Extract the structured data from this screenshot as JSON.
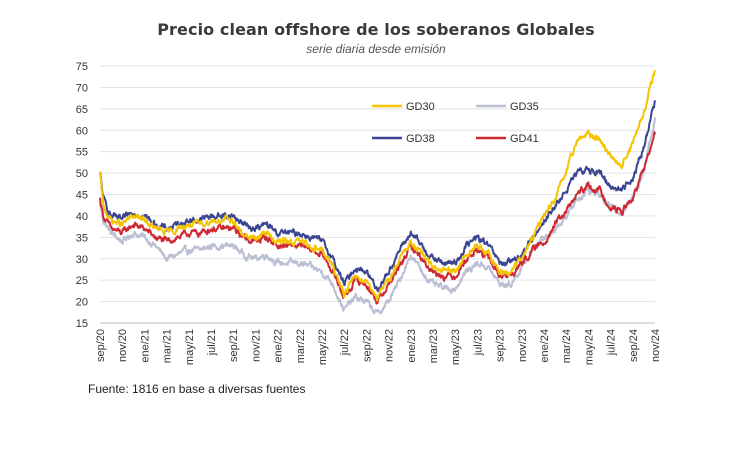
{
  "chart_data": {
    "type": "line",
    "title": "Precio clean offshore de los soberanos Globales",
    "subtitle": "serie diaria desde emisión",
    "source": "Fuente: 1816 en base a diversas fuentes",
    "ylim": [
      15,
      75
    ],
    "yticks": [
      15,
      20,
      25,
      30,
      35,
      40,
      45,
      50,
      55,
      60,
      65,
      70,
      75
    ],
    "grid": true,
    "legend_position": "top-center",
    "x_time_range": [
      "2020-09",
      "2024-11"
    ],
    "xticks": [
      {
        "label": "sep/20",
        "t": 0
      },
      {
        "label": "nov/20",
        "t": 2
      },
      {
        "label": "ene/21",
        "t": 4
      },
      {
        "label": "mar/21",
        "t": 6
      },
      {
        "label": "may/21",
        "t": 8
      },
      {
        "label": "jul/21",
        "t": 10
      },
      {
        "label": "sep/21",
        "t": 12
      },
      {
        "label": "nov/21",
        "t": 14
      },
      {
        "label": "ene/22",
        "t": 16
      },
      {
        "label": "mar/22",
        "t": 18
      },
      {
        "label": "may/22",
        "t": 20
      },
      {
        "label": "jul/22",
        "t": 22
      },
      {
        "label": "sep/22",
        "t": 24
      },
      {
        "label": "nov/22",
        "t": 26
      },
      {
        "label": "ene/23",
        "t": 28
      },
      {
        "label": "mar/23",
        "t": 30
      },
      {
        "label": "may/23",
        "t": 32
      },
      {
        "label": "jul/23",
        "t": 34
      },
      {
        "label": "sep/23",
        "t": 36
      },
      {
        "label": "nov/23",
        "t": 38
      },
      {
        "label": "ene/24",
        "t": 40
      },
      {
        "label": "mar/24",
        "t": 42
      },
      {
        "label": "may/24",
        "t": 44
      },
      {
        "label": "jul/24",
        "t": 46
      },
      {
        "label": "sep/24",
        "t": 48
      },
      {
        "label": "nov/24",
        "t": 50
      }
    ],
    "series": [
      {
        "name": "GD30",
        "color": "#f5c400",
        "points": [
          [
            0,
            50
          ],
          [
            0.3,
            42
          ],
          [
            1,
            39
          ],
          [
            2,
            38
          ],
          [
            3,
            40
          ],
          [
            4,
            39
          ],
          [
            5,
            37
          ],
          [
            6,
            36
          ],
          [
            7,
            37
          ],
          [
            8,
            38
          ],
          [
            9,
            38
          ],
          [
            10,
            39
          ],
          [
            11,
            39
          ],
          [
            12,
            39
          ],
          [
            13,
            35
          ],
          [
            14,
            35
          ],
          [
            15,
            36
          ],
          [
            16,
            34
          ],
          [
            17,
            34
          ],
          [
            18,
            34
          ],
          [
            19,
            33
          ],
          [
            20,
            32
          ],
          [
            21,
            28
          ],
          [
            22,
            22
          ],
          [
            23,
            26
          ],
          [
            24,
            25
          ],
          [
            25,
            21
          ],
          [
            26,
            25
          ],
          [
            27,
            30
          ],
          [
            28,
            34
          ],
          [
            29,
            31
          ],
          [
            30,
            28
          ],
          [
            31,
            27
          ],
          [
            32,
            27
          ],
          [
            33,
            31
          ],
          [
            34,
            33
          ],
          [
            35,
            31
          ],
          [
            36,
            27
          ],
          [
            37,
            27
          ],
          [
            38,
            30
          ],
          [
            39,
            35
          ],
          [
            40,
            40
          ],
          [
            41,
            44
          ],
          [
            42,
            50
          ],
          [
            43,
            58
          ],
          [
            44,
            59
          ],
          [
            45,
            58
          ],
          [
            46,
            54
          ],
          [
            47,
            52
          ],
          [
            48,
            57
          ],
          [
            49,
            64
          ],
          [
            50,
            74
          ]
        ]
      },
      {
        "name": "GD35",
        "color": "#bbbfd4",
        "points": [
          [
            0,
            43
          ],
          [
            0.3,
            39
          ],
          [
            1,
            36
          ],
          [
            2,
            34
          ],
          [
            3,
            36
          ],
          [
            4,
            35
          ],
          [
            5,
            33
          ],
          [
            6,
            30
          ],
          [
            7,
            31
          ],
          [
            8,
            32
          ],
          [
            9,
            32
          ],
          [
            10,
            33
          ],
          [
            11,
            33
          ],
          [
            12,
            33
          ],
          [
            13,
            31
          ],
          [
            14,
            30
          ],
          [
            15,
            31
          ],
          [
            16,
            29
          ],
          [
            17,
            29
          ],
          [
            18,
            29
          ],
          [
            19,
            28
          ],
          [
            20,
            27
          ],
          [
            21,
            24
          ],
          [
            22,
            18
          ],
          [
            23,
            21
          ],
          [
            24,
            20
          ],
          [
            25,
            17
          ],
          [
            26,
            20
          ],
          [
            27,
            25
          ],
          [
            28,
            31
          ],
          [
            29,
            27
          ],
          [
            30,
            24
          ],
          [
            31,
            23
          ],
          [
            32,
            23
          ],
          [
            33,
            27
          ],
          [
            34,
            29
          ],
          [
            35,
            28
          ],
          [
            36,
            24
          ],
          [
            37,
            24
          ],
          [
            38,
            28
          ],
          [
            39,
            32
          ],
          [
            40,
            35
          ],
          [
            41,
            37
          ],
          [
            42,
            40
          ],
          [
            43,
            44
          ],
          [
            44,
            46
          ],
          [
            45,
            45
          ],
          [
            46,
            42
          ],
          [
            47,
            41
          ],
          [
            48,
            44
          ],
          [
            49,
            51
          ],
          [
            50,
            63
          ]
        ]
      },
      {
        "name": "GD38",
        "color": "#3b4592",
        "points": [
          [
            0,
            50
          ],
          [
            0.3,
            44
          ],
          [
            1,
            40
          ],
          [
            2,
            39
          ],
          [
            3,
            41
          ],
          [
            4,
            40
          ],
          [
            5,
            38
          ],
          [
            6,
            37
          ],
          [
            7,
            38
          ],
          [
            8,
            39
          ],
          [
            9,
            39
          ],
          [
            10,
            40
          ],
          [
            11,
            40
          ],
          [
            12,
            40
          ],
          [
            13,
            38
          ],
          [
            14,
            37
          ],
          [
            15,
            38
          ],
          [
            16,
            36
          ],
          [
            17,
            36
          ],
          [
            18,
            36
          ],
          [
            19,
            35
          ],
          [
            20,
            34
          ],
          [
            21,
            30
          ],
          [
            22,
            24
          ],
          [
            23,
            28
          ],
          [
            24,
            27
          ],
          [
            25,
            23
          ],
          [
            26,
            27
          ],
          [
            27,
            32
          ],
          [
            28,
            36
          ],
          [
            29,
            33
          ],
          [
            30,
            30
          ],
          [
            31,
            29
          ],
          [
            32,
            29
          ],
          [
            33,
            33
          ],
          [
            34,
            35
          ],
          [
            35,
            33
          ],
          [
            36,
            29
          ],
          [
            37,
            29
          ],
          [
            38,
            31
          ],
          [
            39,
            35
          ],
          [
            40,
            39
          ],
          [
            41,
            42
          ],
          [
            42,
            46
          ],
          [
            43,
            50
          ],
          [
            44,
            51
          ],
          [
            45,
            50
          ],
          [
            46,
            47
          ],
          [
            47,
            46
          ],
          [
            48,
            49
          ],
          [
            49,
            56
          ],
          [
            50,
            67
          ]
        ]
      },
      {
        "name": "GD41",
        "color": "#cf2a33",
        "points": [
          [
            0,
            44
          ],
          [
            0.3,
            40
          ],
          [
            1,
            37
          ],
          [
            2,
            36
          ],
          [
            3,
            38
          ],
          [
            4,
            37
          ],
          [
            5,
            35
          ],
          [
            6,
            34
          ],
          [
            7,
            35
          ],
          [
            8,
            36
          ],
          [
            9,
            36
          ],
          [
            10,
            37
          ],
          [
            11,
            37
          ],
          [
            12,
            37
          ],
          [
            13,
            35
          ],
          [
            14,
            34
          ],
          [
            15,
            35
          ],
          [
            16,
            33
          ],
          [
            17,
            33
          ],
          [
            18,
            33
          ],
          [
            19,
            32
          ],
          [
            20,
            31
          ],
          [
            21,
            27
          ],
          [
            22,
            21
          ],
          [
            23,
            25
          ],
          [
            24,
            24
          ],
          [
            25,
            20
          ],
          [
            26,
            24
          ],
          [
            27,
            28
          ],
          [
            28,
            33
          ],
          [
            29,
            30
          ],
          [
            30,
            27
          ],
          [
            31,
            26
          ],
          [
            32,
            26
          ],
          [
            33,
            30
          ],
          [
            34,
            32
          ],
          [
            35,
            30
          ],
          [
            36,
            26
          ],
          [
            37,
            26
          ],
          [
            38,
            29
          ],
          [
            39,
            32
          ],
          [
            40,
            34
          ],
          [
            41,
            38
          ],
          [
            42,
            41
          ],
          [
            43,
            45
          ],
          [
            44,
            47
          ],
          [
            45,
            46
          ],
          [
            46,
            42
          ],
          [
            47,
            41
          ],
          [
            48,
            44
          ],
          [
            49,
            51
          ],
          [
            50,
            59
          ]
        ]
      }
    ]
  }
}
